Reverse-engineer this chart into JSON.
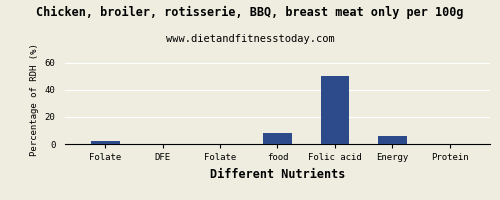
{
  "title": "Chicken, broiler, rotisserie, BBQ, breast meat only per 100g",
  "subtitle": "www.dietandfitnesstoday.com",
  "xlabel": "Different Nutrients",
  "ylabel": "Percentage of RDH (%)",
  "categories": [
    "Folate",
    "DFE",
    "Folate",
    "food",
    "Folic acid",
    "Energy",
    "Protein"
  ],
  "values": [
    2.5,
    0,
    0,
    8,
    50,
    6,
    0
  ],
  "bar_color": "#2d4a8a",
  "ylim": [
    0,
    65
  ],
  "yticks": [
    0,
    20,
    40,
    60
  ],
  "background_color": "#eeede0",
  "title_fontsize": 8.5,
  "subtitle_fontsize": 7.5,
  "xlabel_fontsize": 8.5,
  "ylabel_fontsize": 6.5,
  "tick_fontsize": 6.5
}
